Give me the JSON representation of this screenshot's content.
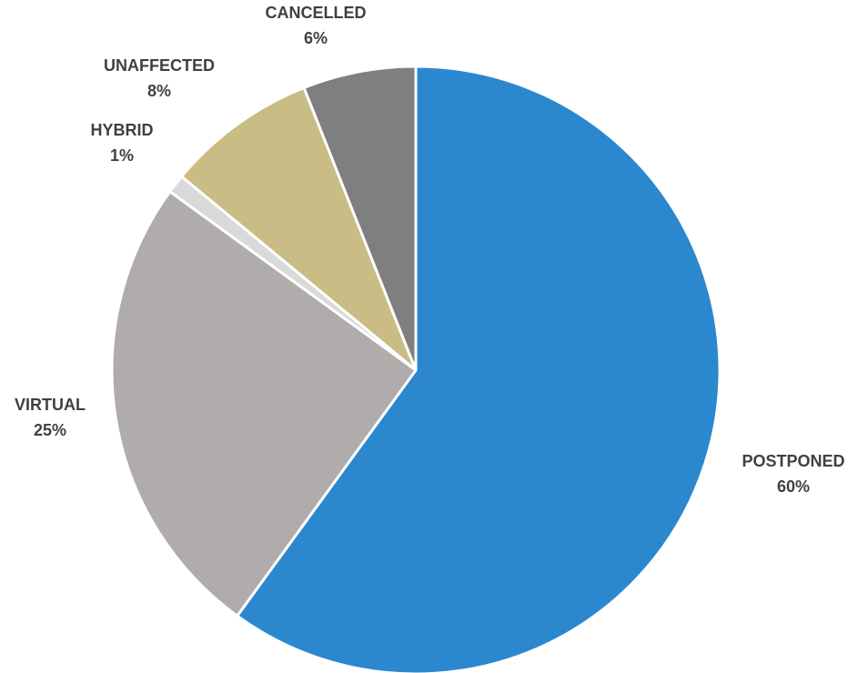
{
  "chart_data": {
    "type": "pie",
    "title": "",
    "slices": [
      {
        "label": "POSTPONED",
        "value": 60,
        "value_text": "60%",
        "color": "#2b88cf"
      },
      {
        "label": "VIRTUAL",
        "value": 25,
        "value_text": "25%",
        "color": "#b0acab"
      },
      {
        "label": "HYBRID",
        "value": 1,
        "value_text": "1%",
        "color": "#d9d9d9"
      },
      {
        "label": "UNAFFECTED",
        "value": 8,
        "value_text": "8%",
        "color": "#c9bc84"
      },
      {
        "label": "CANCELLED",
        "value": 6,
        "value_text": "6%",
        "color": "#7f7f7f"
      }
    ],
    "start": "12 o'clock",
    "direction": "clockwise",
    "data_labels": "outside end",
    "legend": "none"
  }
}
